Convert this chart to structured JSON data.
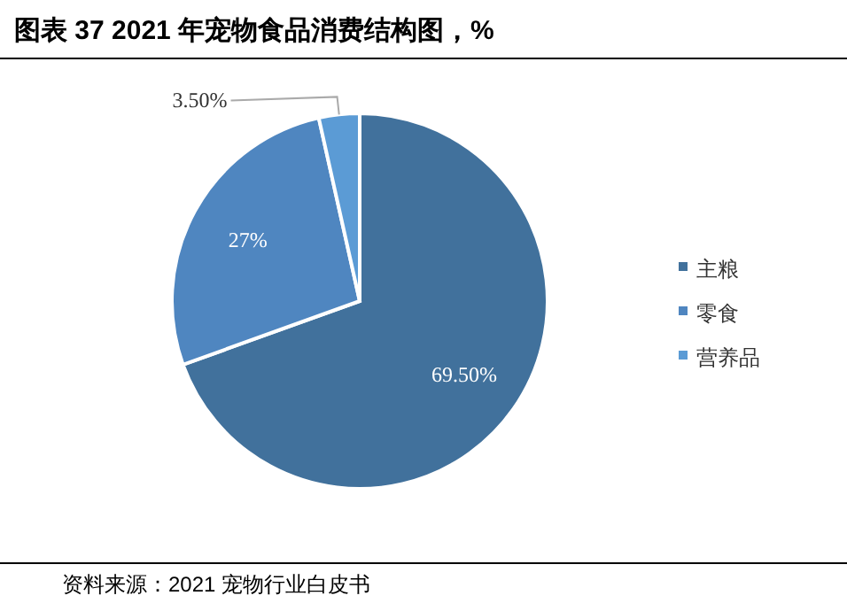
{
  "chart_data": {
    "type": "pie",
    "title": "图表 37 2021 年宠物食品消费结构图，%",
    "categories": [
      "主粮",
      "零食",
      "营养品"
    ],
    "values": [
      69.5,
      27,
      3.5
    ],
    "value_labels": [
      "69.50%",
      "27%",
      "3.50%"
    ],
    "colors": [
      "#41719c",
      "#4f86c0",
      "#5b9bd5"
    ],
    "legend": "right",
    "annotations": [
      "资料来源：2021 宠物行业白皮书"
    ]
  }
}
